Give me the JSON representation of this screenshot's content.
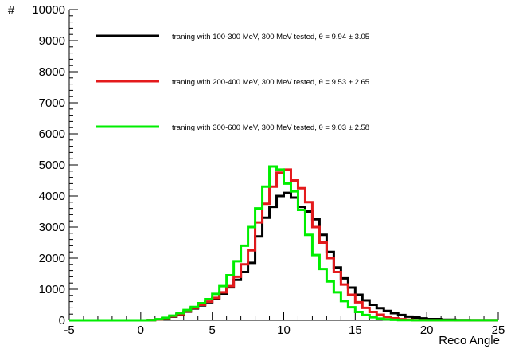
{
  "chart_data": {
    "type": "line",
    "histogram": true,
    "xlabel": "Reco Angle",
    "ylabel": "#",
    "xlim": [
      -5,
      25
    ],
    "ylim": [
      0,
      10000
    ],
    "x_ticks": [
      "-5",
      "0",
      "5",
      "10",
      "15",
      "20",
      "25"
    ],
    "y_ticks": [
      "0",
      "1000",
      "2000",
      "3000",
      "4000",
      "5000",
      "6000",
      "7000",
      "8000",
      "9000",
      "10000"
    ],
    "grid": false,
    "legend_position": "top-right",
    "bin_width": 0.5,
    "series": [
      {
        "name": "traning with 100-300 MeV, 300 MeV tested, θ = 9.94 ± 3.05",
        "color": "#000000",
        "points": [
          [
            -5,
            0
          ],
          [
            0,
            0
          ],
          [
            0.5,
            5
          ],
          [
            1,
            25
          ],
          [
            1.5,
            60
          ],
          [
            2,
            120
          ],
          [
            2.5,
            190
          ],
          [
            3,
            280
          ],
          [
            3.5,
            380
          ],
          [
            4,
            480
          ],
          [
            4.5,
            580
          ],
          [
            5,
            700
          ],
          [
            5.5,
            860
          ],
          [
            6,
            1060
          ],
          [
            6.5,
            1300
          ],
          [
            7,
            1550
          ],
          [
            7.5,
            1850
          ],
          [
            8,
            2700
          ],
          [
            8.5,
            3300
          ],
          [
            9,
            3650
          ],
          [
            9.5,
            4000
          ],
          [
            10,
            4100
          ],
          [
            10.5,
            3950
          ],
          [
            11,
            3650
          ],
          [
            11.5,
            3500
          ],
          [
            12,
            3250
          ],
          [
            12.5,
            2750
          ],
          [
            13,
            2200
          ],
          [
            13.5,
            1700
          ],
          [
            14,
            1350
          ],
          [
            14.5,
            1050
          ],
          [
            15,
            820
          ],
          [
            15.5,
            640
          ],
          [
            16,
            500
          ],
          [
            16.5,
            390
          ],
          [
            17,
            300
          ],
          [
            17.5,
            230
          ],
          [
            18,
            170
          ],
          [
            18.5,
            120
          ],
          [
            19,
            90
          ],
          [
            19.5,
            60
          ],
          [
            20,
            40
          ],
          [
            21,
            20
          ],
          [
            22,
            8
          ],
          [
            23,
            3
          ],
          [
            25,
            0
          ]
        ]
      },
      {
        "name": "traning with 200-400 MeV, 300 MeV tested, θ = 9.53 ± 2.65",
        "color": "#e41a1c",
        "points": [
          [
            -5,
            0
          ],
          [
            0,
            0
          ],
          [
            0.5,
            6
          ],
          [
            1,
            30
          ],
          [
            1.5,
            70
          ],
          [
            2,
            130
          ],
          [
            2.5,
            200
          ],
          [
            3,
            290
          ],
          [
            3.5,
            400
          ],
          [
            4,
            500
          ],
          [
            4.5,
            600
          ],
          [
            5,
            720
          ],
          [
            5.5,
            900
          ],
          [
            6,
            1100
          ],
          [
            6.5,
            1400
          ],
          [
            7,
            1800
          ],
          [
            7.5,
            2250
          ],
          [
            8,
            3150
          ],
          [
            8.5,
            3750
          ],
          [
            9,
            4300
          ],
          [
            9.5,
            4750
          ],
          [
            10,
            4850
          ],
          [
            10.5,
            4500
          ],
          [
            11,
            4250
          ],
          [
            11.5,
            3800
          ],
          [
            12,
            3000
          ],
          [
            12.5,
            2500
          ],
          [
            13,
            2000
          ],
          [
            13.5,
            1550
          ],
          [
            14,
            1150
          ],
          [
            14.5,
            820
          ],
          [
            15,
            580
          ],
          [
            15.5,
            400
          ],
          [
            16,
            270
          ],
          [
            16.5,
            180
          ],
          [
            17,
            110
          ],
          [
            17.5,
            65
          ],
          [
            18,
            35
          ],
          [
            18.5,
            18
          ],
          [
            19,
            8
          ],
          [
            20,
            3
          ],
          [
            25,
            0
          ]
        ]
      },
      {
        "name": "traning with 300-600 MeV, 300 MeV tested, θ = 9.03 ± 2.58",
        "color": "#00ee00",
        "points": [
          [
            -5,
            0
          ],
          [
            0,
            0
          ],
          [
            0.5,
            8
          ],
          [
            1,
            35
          ],
          [
            1.5,
            80
          ],
          [
            2,
            150
          ],
          [
            2.5,
            230
          ],
          [
            3,
            330
          ],
          [
            3.5,
            430
          ],
          [
            4,
            550
          ],
          [
            4.5,
            680
          ],
          [
            5,
            850
          ],
          [
            5.5,
            1100
          ],
          [
            6,
            1450
          ],
          [
            6.5,
            1900
          ],
          [
            7,
            2400
          ],
          [
            7.5,
            3000
          ],
          [
            8,
            3600
          ],
          [
            8.5,
            4300
          ],
          [
            9,
            4950
          ],
          [
            9.5,
            4850
          ],
          [
            10,
            4400
          ],
          [
            10.5,
            4150
          ],
          [
            11,
            3550
          ],
          [
            11.5,
            2750
          ],
          [
            12,
            2100
          ],
          [
            12.5,
            1650
          ],
          [
            13,
            1250
          ],
          [
            13.5,
            900
          ],
          [
            14,
            620
          ],
          [
            14.5,
            420
          ],
          [
            15,
            270
          ],
          [
            15.5,
            170
          ],
          [
            16,
            100
          ],
          [
            16.5,
            55
          ],
          [
            17,
            30
          ],
          [
            17.5,
            15
          ],
          [
            18,
            7
          ],
          [
            19,
            2
          ],
          [
            25,
            0
          ]
        ]
      }
    ]
  }
}
